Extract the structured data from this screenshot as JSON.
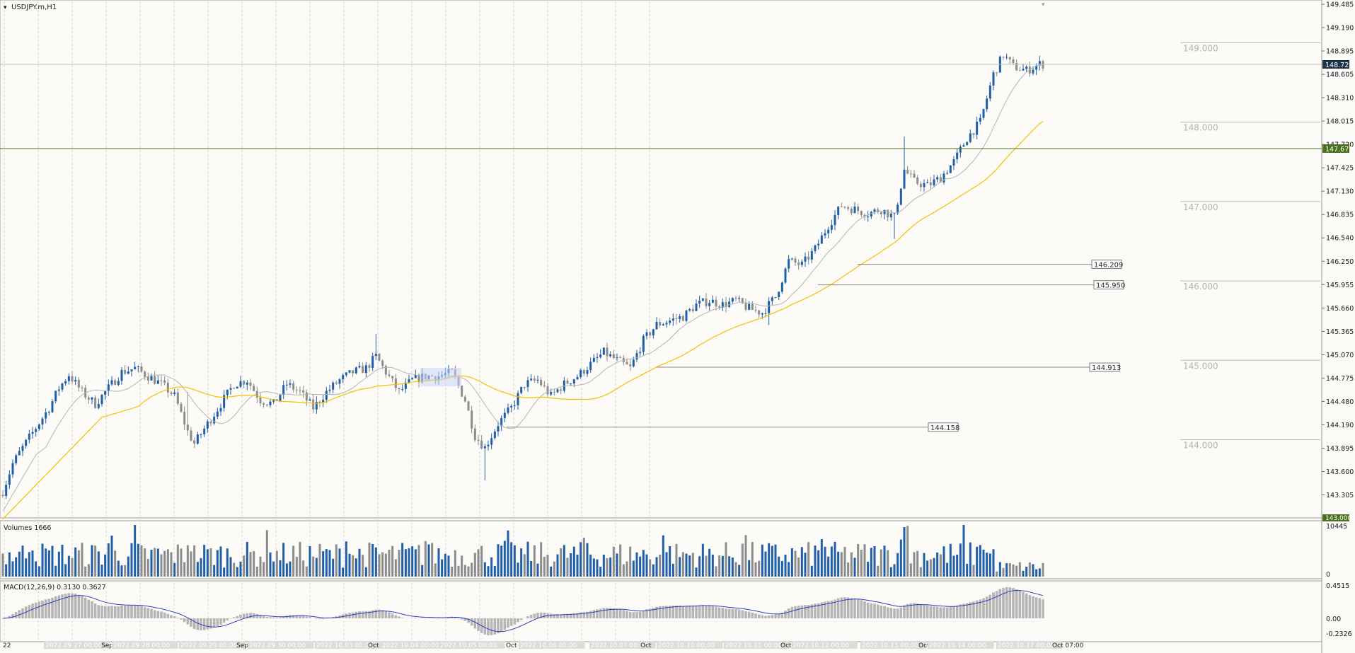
{
  "window": {
    "title": "USDJPY.m,H1"
  },
  "price_axis": {
    "ticks": [
      "149.485",
      "149.190",
      "148.895",
      "148.605",
      "148.310",
      "148.015",
      "147.720",
      "147.425",
      "147.130",
      "146.835",
      "146.540",
      "146.250",
      "145.955",
      "145.660",
      "145.365",
      "145.070",
      "144.775",
      "144.480",
      "144.190",
      "143.895",
      "143.600",
      "143.305"
    ],
    "current_price": "148.727",
    "level_price": "147.672",
    "bottom_badge": "143.000"
  },
  "round_levels": [
    "149.000",
    "148.000",
    "147.000",
    "146.000",
    "145.000",
    "144.000"
  ],
  "marked_levels": [
    "146.209",
    "145.950",
    "144.913",
    "144.158"
  ],
  "volumes": {
    "title": "Volumes 1666",
    "max_label": "10445",
    "min_label": "0"
  },
  "macd": {
    "title": "MACD(12,26,9) 0.3130 0.3627",
    "max_label": "0.4515",
    "zero_label": "0.00",
    "min_label": "-0.2326"
  },
  "time_axis": {
    "labels": [
      "22",
      "2022.09.27 00:00",
      "Sep",
      "2022.09.28 00:00",
      "2022.09.29 00:00",
      "Sep",
      "2022.09.30 00:00",
      "2022.10.03 00:00",
      "Oct",
      "2022.10.04 00:00",
      "2022.10.05 00:00",
      "Oct",
      "2022.10.06 00:00",
      "2022.10.07 00:00",
      "Oct",
      "2022.10.10 00:00",
      "2022.10.11 00:00",
      "Oct",
      "2022.10.12 00:00",
      "2022.10.13 00:00",
      "Oct",
      "2022.10.14 00:00",
      "2022.10.17 00:00",
      "Oct 07:00"
    ]
  },
  "colors": {
    "bull": "#1f5fa8",
    "bear": "#8c8c8c",
    "ma_fast": "#b4b4b4",
    "ma_slow": "#f2c200",
    "macd_signal": "#2a3fc0",
    "level_line": "#4a6f1e"
  },
  "chart_data": {
    "type": "candlestick",
    "symbol": "USDJPY.m",
    "timeframe": "H1",
    "y_range": [
      143.0,
      149.485
    ],
    "current_price": 148.727,
    "horizontal_levels": [
      149.0,
      148.0,
      147.672,
      147.0,
      146.209,
      146.0,
      145.95,
      145.0,
      144.913,
      144.158,
      144.0
    ],
    "close_trajectory": [
      [
        0,
        143.35
      ],
      [
        3,
        143.7
      ],
      [
        6,
        143.9
      ],
      [
        10,
        144.15
      ],
      [
        14,
        144.4
      ],
      [
        17,
        144.65
      ],
      [
        20,
        144.82
      ],
      [
        24,
        144.6
      ],
      [
        28,
        144.45
      ],
      [
        32,
        144.65
      ],
      [
        36,
        144.85
      ],
      [
        40,
        144.9
      ],
      [
        44,
        144.8
      ],
      [
        48,
        144.7
      ],
      [
        52,
        144.55
      ],
      [
        56,
        144.1
      ],
      [
        58,
        143.95
      ],
      [
        62,
        144.2
      ],
      [
        66,
        144.45
      ],
      [
        70,
        144.7
      ],
      [
        74,
        144.75
      ],
      [
        78,
        144.5
      ],
      [
        82,
        144.45
      ],
      [
        86,
        144.7
      ],
      [
        90,
        144.6
      ],
      [
        94,
        144.4
      ],
      [
        98,
        144.6
      ],
      [
        102,
        144.75
      ],
      [
        106,
        144.85
      ],
      [
        110,
        144.9
      ],
      [
        113,
        145.05
      ],
      [
        116,
        144.85
      ],
      [
        120,
        144.6
      ],
      [
        124,
        144.75
      ],
      [
        128,
        144.8
      ],
      [
        132,
        144.8
      ],
      [
        136,
        144.85
      ],
      [
        140,
        144.5
      ],
      [
        143,
        144.05
      ],
      [
        146,
        143.9
      ],
      [
        150,
        144.2
      ],
      [
        154,
        144.4
      ],
      [
        158,
        144.7
      ],
      [
        162,
        144.75
      ],
      [
        166,
        144.55
      ],
      [
        170,
        144.7
      ],
      [
        174,
        144.8
      ],
      [
        178,
        144.95
      ],
      [
        182,
        145.1
      ],
      [
        186,
        145.0
      ],
      [
        190,
        144.9
      ],
      [
        194,
        145.25
      ],
      [
        198,
        145.45
      ],
      [
        202,
        145.5
      ],
      [
        206,
        145.55
      ],
      [
        210,
        145.7
      ],
      [
        214,
        145.75
      ],
      [
        218,
        145.7
      ],
      [
        222,
        145.75
      ],
      [
        226,
        145.65
      ],
      [
        230,
        145.6
      ],
      [
        234,
        145.8
      ],
      [
        238,
        146.25
      ],
      [
        242,
        146.2
      ],
      [
        246,
        146.4
      ],
      [
        250,
        146.7
      ],
      [
        254,
        146.95
      ],
      [
        258,
        146.9
      ],
      [
        262,
        146.85
      ],
      [
        266,
        146.9
      ],
      [
        270,
        146.8
      ],
      [
        273,
        147.4
      ],
      [
        276,
        147.25
      ],
      [
        280,
        147.2
      ],
      [
        284,
        147.3
      ],
      [
        288,
        147.5
      ],
      [
        292,
        147.8
      ],
      [
        296,
        148.0
      ],
      [
        300,
        148.6
      ],
      [
        303,
        148.85
      ],
      [
        306,
        148.7
      ],
      [
        310,
        148.65
      ],
      [
        314,
        148.73
      ]
    ],
    "volume_range": [
      0,
      10445
    ],
    "macd": {
      "fast": 12,
      "slow": 26,
      "signal": 9,
      "main": 0.313,
      "signal_value": 0.3627,
      "y_range": [
        -0.2326,
        0.4515
      ]
    }
  }
}
